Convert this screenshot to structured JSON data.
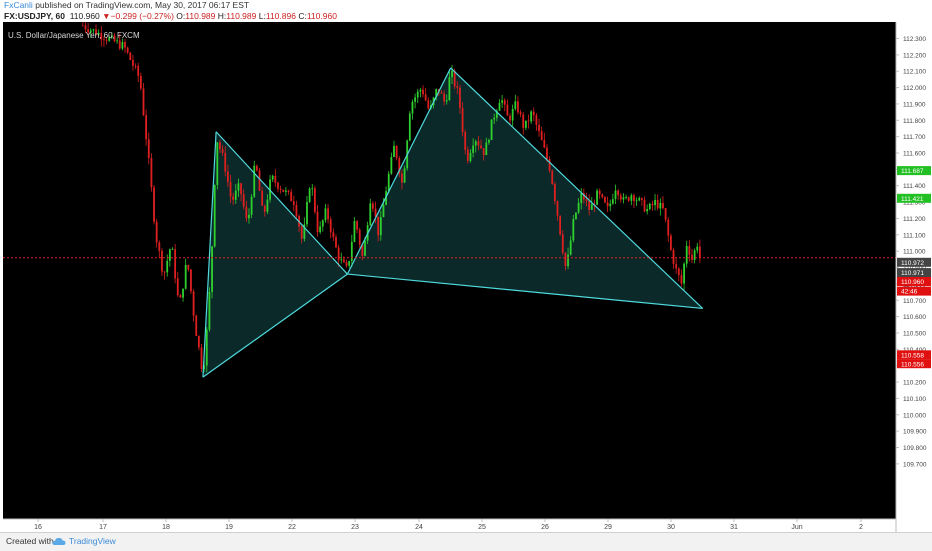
{
  "header": {
    "author": "FxCanli",
    "published_text": "published on TradingView.com, May 30, 2017 06:17 EST",
    "symbol": "FX:USDJPY, 60",
    "last": "110.960",
    "change": "−0.299 (−0.27%)",
    "open_label": "O:",
    "open": "110.989",
    "high_label": "H:",
    "high": "110.989",
    "low_label": "L:",
    "low": "110.896",
    "close_label": "C:",
    "close": "110.960"
  },
  "footer": {
    "created_with": "Created with",
    "brand": "TradingView"
  },
  "chart_data": {
    "type": "candlestick",
    "title": "U.S. Dollar/Japanese Yen, 60, FXCM",
    "ylim": [
      109.65,
      112.38
    ],
    "y_ticks": [
      "112.300",
      "112.200",
      "112.100",
      "112.000",
      "111.900",
      "111.800",
      "111.700",
      "111.600",
      "111.500",
      "111.400",
      "111.300",
      "111.200",
      "111.100",
      "111.000",
      "110.900",
      "110.800",
      "110.700",
      "110.600",
      "110.500",
      "110.400",
      "110.300",
      "110.200",
      "110.100",
      "110.000",
      "109.900",
      "109.800",
      "109.700"
    ],
    "x_ticks": [
      "16",
      "17",
      "18",
      "19",
      "22",
      "23",
      "24",
      "25",
      "26",
      "29",
      "30",
      "31",
      "Jun",
      "2"
    ],
    "price_tags": [
      {
        "value": 111.687,
        "label": "111.687",
        "color": "#22c022"
      },
      {
        "value": 111.421,
        "label": "111.421",
        "color": "#22c022"
      },
      {
        "value": 110.972,
        "label": "110.972",
        "color": "#444444"
      },
      {
        "value": 110.971,
        "label": "110.971",
        "color": "#444444"
      },
      {
        "value": 110.96,
        "label": "110.960",
        "color": "#e01010"
      },
      {
        "value": 110.855,
        "label": "42:46",
        "color": "#e01010"
      },
      {
        "value": 110.558,
        "label": "110.558",
        "color": "#e01010"
      },
      {
        "value": 110.556,
        "label": "110.556",
        "color": "#e01010"
      }
    ],
    "last_price": 110.96,
    "pattern": {
      "name": "cypher",
      "points": [
        {
          "time": "18 May 14:00",
          "price": 110.23
        },
        {
          "time": "18 May 19:00",
          "price": 111.73
        },
        {
          "time": "22 May 21:00",
          "price": 110.86
        },
        {
          "time": "24 May 12:00",
          "price": 112.12
        },
        {
          "time": "30 May 12:00",
          "price": 110.65
        }
      ],
      "fill": "#0c2e2c",
      "line_color": "#4fd9dc"
    },
    "price_path": [
      [
        "16 May 17:00",
        112.38
      ],
      [
        "17 May 08:00",
        112.25
      ],
      [
        "17 May 14:00",
        112.05
      ],
      [
        "17 May 17:00",
        111.6
      ],
      [
        "17 May 20:00",
        111.1
      ],
      [
        "17 May 23:00",
        110.85
      ],
      [
        "18 May 02:00",
        111.05
      ],
      [
        "18 May 05:00",
        110.65
      ],
      [
        "18 May 08:00",
        110.95
      ],
      [
        "18 May 11:00",
        110.55
      ],
      [
        "18 May 14:00",
        110.25
      ],
      [
        "18 May 16:00",
        110.6
      ],
      [
        "18 May 18:00",
        111.2
      ],
      [
        "18 May 19:00",
        111.7
      ],
      [
        "18 May 22:00",
        111.55
      ],
      [
        "19 May 01:00",
        111.3
      ],
      [
        "19 May 04:00",
        111.4
      ],
      [
        "19 May 07:00",
        111.15
      ],
      [
        "19 May 10:00",
        111.55
      ],
      [
        "19 May 13:00",
        111.2
      ],
      [
        "19 May 16:00",
        111.45
      ],
      [
        "22 May 01:00",
        111.3
      ],
      [
        "22 May 04:00",
        111.05
      ],
      [
        "22 May 07:00",
        111.45
      ],
      [
        "22 May 10:00",
        111.1
      ],
      [
        "22 May 13:00",
        111.25
      ],
      [
        "22 May 16:00",
        111.05
      ],
      [
        "22 May 18:00",
        110.95
      ],
      [
        "22 May 21:00",
        110.88
      ],
      [
        "23 May 00:00",
        111.2
      ],
      [
        "23 May 03:00",
        110.95
      ],
      [
        "23 May 06:00",
        111.35
      ],
      [
        "23 May 09:00",
        111.1
      ],
      [
        "23 May 12:00",
        111.4
      ],
      [
        "23 May 15:00",
        111.65
      ],
      [
        "23 May 18:00",
        111.4
      ],
      [
        "23 May 21:00",
        111.9
      ],
      [
        "24 May 01:00",
        112.0
      ],
      [
        "24 May 04:00",
        111.85
      ],
      [
        "24 May 07:00",
        112.0
      ],
      [
        "24 May 10:00",
        111.9
      ],
      [
        "24 May 12:00",
        112.1
      ],
      [
        "24 May 15:00",
        111.95
      ],
      [
        "24 May 18:00",
        111.55
      ],
      [
        "24 May 21:00",
        111.7
      ],
      [
        "25 May 01:00",
        111.6
      ],
      [
        "25 May 04:00",
        111.8
      ],
      [
        "25 May 07:00",
        111.95
      ],
      [
        "25 May 10:00",
        111.8
      ],
      [
        "25 May 13:00",
        111.9
      ],
      [
        "25 May 16:00",
        111.75
      ],
      [
        "25 May 19:00",
        111.85
      ],
      [
        "25 May 22:00",
        111.7
      ],
      [
        "26 May 02:00",
        111.5
      ],
      [
        "26 May 05:00",
        111.2
      ],
      [
        "26 May 08:00",
        110.88
      ],
      [
        "26 May 11:00",
        111.2
      ],
      [
        "26 May 14:00",
        111.35
      ],
      [
        "26 May 17:00",
        111.25
      ],
      [
        "26 May 20:00",
        111.35
      ],
      [
        "29 May 00:00",
        111.25
      ],
      [
        "29 May 03:00",
        111.4
      ],
      [
        "29 May 06:00",
        111.3
      ],
      [
        "29 May 09:00",
        111.35
      ],
      [
        "29 May 12:00",
        111.3
      ],
      [
        "29 May 15:00",
        111.25
      ],
      [
        "29 May 18:00",
        111.3
      ],
      [
        "29 May 21:00",
        111.25
      ],
      [
        "30 May 00:00",
        111.0
      ],
      [
        "30 May 02:00",
        110.88
      ],
      [
        "30 May 04:00",
        110.8
      ],
      [
        "30 May 06:00",
        111.05
      ],
      [
        "30 May 08:00",
        110.95
      ],
      [
        "30 May 10:00",
        111.05
      ],
      [
        "30 May 11:00",
        110.96
      ]
    ],
    "colors": {
      "background": "#000000",
      "up": "#2fd12f",
      "down": "#e02020",
      "last_price_line": "#e02020"
    }
  }
}
